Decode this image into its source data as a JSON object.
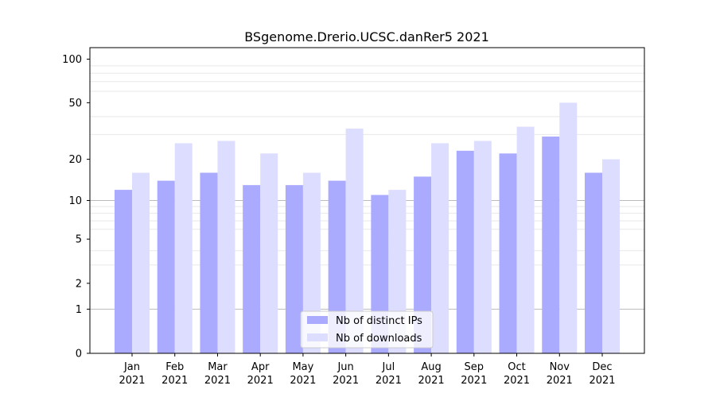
{
  "chart_data": {
    "type": "bar",
    "title": "BSgenome.Drerio.UCSC.danRer5 2021",
    "categories": [
      {
        "month": "Jan",
        "year": "2021"
      },
      {
        "month": "Feb",
        "year": "2021"
      },
      {
        "month": "Mar",
        "year": "2021"
      },
      {
        "month": "Apr",
        "year": "2021"
      },
      {
        "month": "May",
        "year": "2021"
      },
      {
        "month": "Jun",
        "year": "2021"
      },
      {
        "month": "Jul",
        "year": "2021"
      },
      {
        "month": "Aug",
        "year": "2021"
      },
      {
        "month": "Sep",
        "year": "2021"
      },
      {
        "month": "Oct",
        "year": "2021"
      },
      {
        "month": "Nov",
        "year": "2021"
      },
      {
        "month": "Dec",
        "year": "2021"
      }
    ],
    "series": [
      {
        "name": "Nb of distinct IPs",
        "color": "#aaaaff",
        "values": [
          12,
          14,
          16,
          13,
          13,
          14,
          11,
          15,
          23,
          22,
          29,
          16
        ]
      },
      {
        "name": "Nb of downloads",
        "color": "#ddddff",
        "values": [
          16,
          26,
          27,
          22,
          16,
          33,
          12,
          26,
          27,
          34,
          50,
          20
        ]
      }
    ],
    "y_ticks": [
      "0",
      "1",
      "2",
      "5",
      "10",
      "20",
      "50",
      "100"
    ],
    "y_scale": "log1p",
    "ylim": [
      0,
      120
    ],
    "grid": "horizontal",
    "legend_position": "lower center"
  }
}
